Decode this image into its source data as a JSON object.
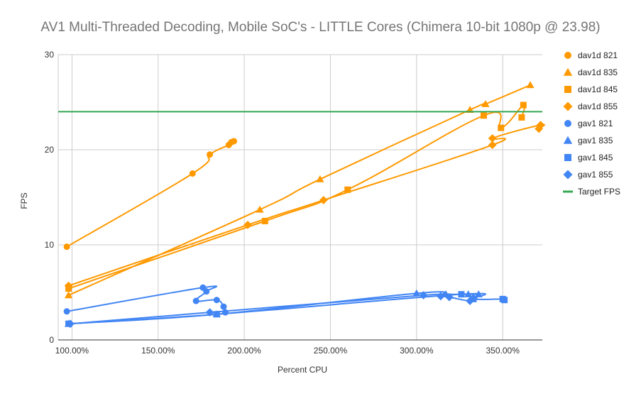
{
  "chart_data": {
    "type": "line",
    "title": "AV1 Multi-Threaded Decoding, Mobile SoC's - LITTLE Cores (Chimera 10-bit 1080p @ 23.98)",
    "xlabel": "Percent CPU",
    "ylabel": "FPS",
    "xlim": [
      92,
      373
    ],
    "ylim": [
      0,
      30
    ],
    "x_ticks": [
      100,
      150,
      200,
      250,
      300,
      350
    ],
    "x_tick_labels": [
      "100.00%",
      "150.00%",
      "200.00%",
      "250.00%",
      "300.00%",
      "350.00%"
    ],
    "y_ticks": [
      0,
      10,
      20,
      30
    ],
    "y_tick_labels": [
      "0",
      "10",
      "20",
      "30"
    ],
    "grid": true,
    "legend_position": "right",
    "series": [
      {
        "name": "dav1d 821",
        "marker": "circle",
        "color": "#ff9900",
        "points": [
          [
            97,
            9.8
          ],
          [
            170,
            17.5
          ],
          [
            180,
            19.5
          ],
          [
            191,
            20.5
          ],
          [
            192.5,
            20.8
          ],
          [
            194,
            20.9
          ]
        ]
      },
      {
        "name": "dav1d 835",
        "marker": "triangle",
        "color": "#ff9900",
        "points": [
          [
            98,
            4.7
          ],
          [
            209,
            13.7
          ],
          [
            244,
            16.9
          ],
          [
            331,
            24.2
          ],
          [
            340,
            24.8
          ],
          [
            366,
            26.8
          ]
        ]
      },
      {
        "name": "dav1d 845",
        "marker": "square",
        "color": "#ff9900",
        "points": [
          [
            98,
            5.4
          ],
          [
            212,
            12.5
          ],
          [
            260,
            15.8
          ],
          [
            339,
            23.6
          ],
          [
            349,
            22.3
          ],
          [
            362,
            24.7
          ],
          [
            361,
            23.4
          ]
        ]
      },
      {
        "name": "dav1d 855",
        "marker": "diamond",
        "color": "#ff9900",
        "points": [
          [
            98,
            5.7
          ],
          [
            202,
            12.1
          ],
          [
            246,
            14.7
          ],
          [
            344,
            20.5
          ],
          [
            344,
            21.2
          ],
          [
            372,
            22.6
          ],
          [
            371,
            22.2
          ]
        ]
      },
      {
        "name": "gav1 821",
        "marker": "circle",
        "color": "#4285f4",
        "points": [
          [
            97,
            3.0
          ],
          [
            176,
            5.5
          ],
          [
            178,
            5.1
          ],
          [
            172,
            4.1
          ],
          [
            184,
            4.2
          ],
          [
            188,
            3.5
          ],
          [
            189,
            2.9
          ]
        ]
      },
      {
        "name": "gav1 835",
        "marker": "triangle",
        "color": "#4285f4",
        "points": [
          [
            98,
            1.7
          ],
          [
            184,
            2.7
          ],
          [
            300,
            4.9
          ],
          [
            317,
            4.8
          ],
          [
            330,
            4.8
          ],
          [
            336,
            4.8
          ]
        ]
      },
      {
        "name": "gav1 845",
        "marker": "square",
        "color": "#4285f4",
        "points": [
          [
            98,
            1.7
          ],
          [
            184,
            2.7
          ],
          [
            326,
            4.8
          ],
          [
            333,
            4.3
          ],
          [
            350,
            4.3
          ],
          [
            351,
            4.2
          ]
        ]
      },
      {
        "name": "gav1 855",
        "marker": "diamond",
        "color": "#4285f4",
        "points": [
          [
            99,
            1.7
          ],
          [
            180,
            2.9
          ],
          [
            304,
            4.7
          ],
          [
            314,
            4.6
          ],
          [
            319,
            4.5
          ],
          [
            331,
            4.1
          ],
          [
            333,
            4.4
          ]
        ]
      },
      {
        "name": "Target FPS",
        "marker": "line",
        "color": "#34a853",
        "points": [
          [
            92,
            24
          ],
          [
            373,
            24
          ]
        ]
      }
    ]
  }
}
